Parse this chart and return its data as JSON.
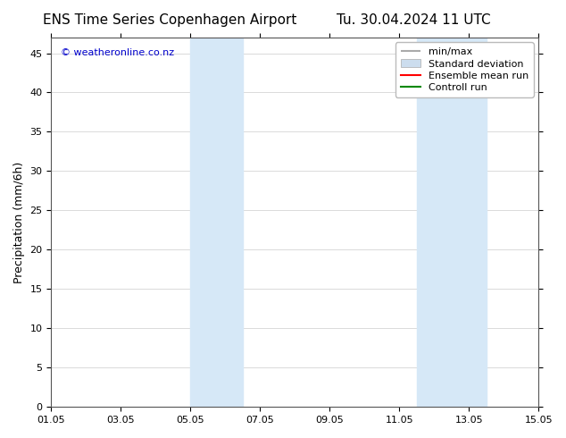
{
  "title_left": "ENS Time Series Copenhagen Airport",
  "title_right": "Tu. 30.04.2024 11 UTC",
  "ylabel": "Precipitation (mm/6h)",
  "background_color": "#ffffff",
  "plot_bg_color": "#ffffff",
  "ylim": [
    0,
    47
  ],
  "yticks": [
    0,
    5,
    10,
    15,
    20,
    25,
    30,
    35,
    40,
    45
  ],
  "xtick_labels": [
    "01.05",
    "03.05",
    "05.05",
    "07.05",
    "09.05",
    "11.05",
    "13.05",
    "15.05"
  ],
  "xtick_positions": [
    0,
    2,
    4,
    6,
    8,
    10,
    12,
    14
  ],
  "shaded_regions": [
    {
      "xstart": 4.0,
      "xend": 5.5,
      "color": "#d6e8f7"
    },
    {
      "xstart": 10.5,
      "xend": 12.5,
      "color": "#d6e8f7"
    }
  ],
  "watermark_text": "© weatheronline.co.nz",
  "watermark_color": "#0000cc",
  "legend_labels": [
    "min/max",
    "Standard deviation",
    "Ensemble mean run",
    "Controll run"
  ],
  "legend_colors": [
    "#aaaaaa",
    "#ccddee",
    "#ff0000",
    "#008800"
  ],
  "title_fontsize": 11,
  "axis_label_fontsize": 9,
  "tick_fontsize": 8,
  "legend_fontsize": 8
}
